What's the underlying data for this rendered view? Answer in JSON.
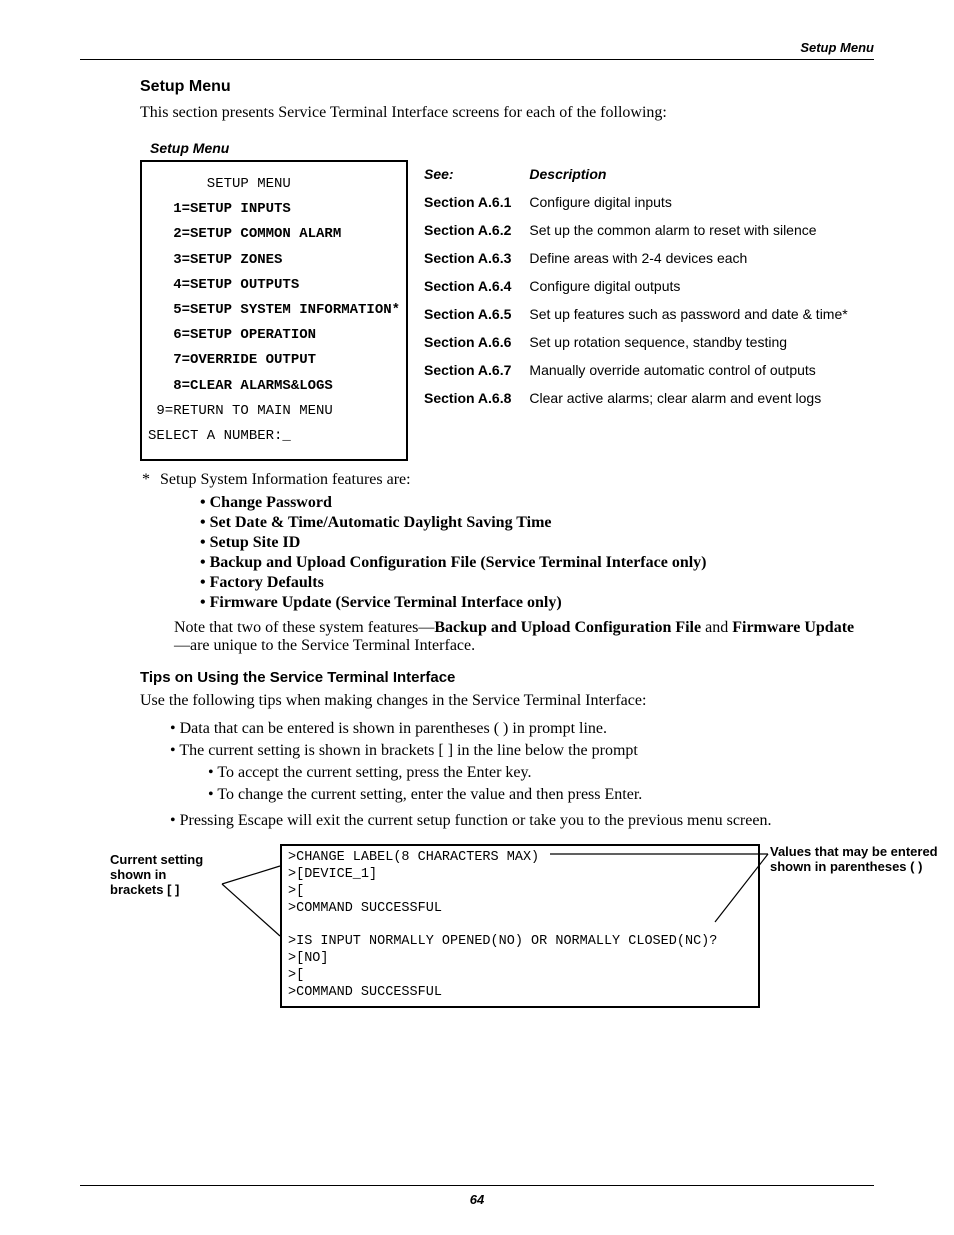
{
  "header": {
    "running": "Setup Menu"
  },
  "section": {
    "title": "Setup Menu",
    "intro": "This section presents Service Terminal Interface screens for each of the following:"
  },
  "menu_box": {
    "label": "Setup Menu",
    "title_line": "       SETUP MENU",
    "items": [
      "   1=SETUP INPUTS",
      "   2=SETUP COMMON ALARM",
      "   3=SETUP ZONES",
      "   4=SETUP OUTPUTS",
      "   5=SETUP SYSTEM INFORMATION*",
      "   6=SETUP OPERATION",
      "   7=OVERRIDE OUTPUT",
      "   8=CLEAR ALARMS&LOGS"
    ],
    "return_line": " 9=RETURN TO MAIN MENU",
    "prompt": "SELECT A NUMBER:_"
  },
  "ref_table": {
    "headers": {
      "see": "See:",
      "desc": "Description"
    },
    "rows": [
      {
        "see": "Section A.6.1",
        "desc": "Configure digital inputs"
      },
      {
        "see": "Section A.6.2",
        "desc": "Set up the common alarm to reset with silence"
      },
      {
        "see": "Section A.6.3",
        "desc": "Define areas with 2-4 devices each"
      },
      {
        "see": "Section A.6.4",
        "desc": "Configure digital outputs"
      },
      {
        "see": "Section A.6.5",
        "desc": "Set up features such as password and date & time*"
      },
      {
        "see": "Section A.6.6",
        "desc": "Set up rotation sequence, standby testing"
      },
      {
        "see": "Section A.6.7",
        "desc": "Manually override automatic control of outputs"
      },
      {
        "see": "Section A.6.8",
        "desc": "Clear active alarms; clear alarm and event logs"
      }
    ]
  },
  "footnote": {
    "star": "*",
    "lead": "Setup System Information features are:",
    "features": [
      "Change Password",
      "Set Date & Time/Automatic Daylight Saving Time",
      "Setup Site ID",
      "Backup and Upload Configuration File (Service Terminal Interface only)",
      "Factory Defaults",
      "Firmware Update (Service Terminal Interface only)"
    ],
    "note_pre": "Note that two of these system features—",
    "note_b1": "Backup and Upload Configuration File",
    "note_mid": " and ",
    "note_b2": "Firmware Update",
    "note_post": "—are unique to the Service Terminal Interface."
  },
  "tips": {
    "title": "Tips on Using the Service Terminal Interface",
    "intro": "Use the following tips when making changes in the Service Terminal Interface:",
    "items": [
      "Data that can be entered is shown in parentheses ( ) in prompt line.",
      "The current setting is shown in brackets [ ] in the line below the prompt"
    ],
    "subitems": [
      "To accept the current setting, press the Enter key.",
      "To change the current setting, enter the value and then press Enter."
    ],
    "last": "Pressing Escape will exit the current setup function or take you to the previous menu screen."
  },
  "diagram": {
    "left_label": "Current setting shown in brackets [ ]",
    "right_label": "Values that may be entered shown in parentheses ( )",
    "term_lines": ">CHANGE LABEL(8 CHARACTERS MAX)\n>[DEVICE_1]\n>[\n>COMMAND SUCCESSFUL\n\n>IS INPUT NORMALLY OPENED(NO) OR NORMALLY CLOSED(NC)?\n>[NO]\n>[\n>COMMAND SUCCESSFUL",
    "line_color": "#000000"
  },
  "page_number": "64"
}
